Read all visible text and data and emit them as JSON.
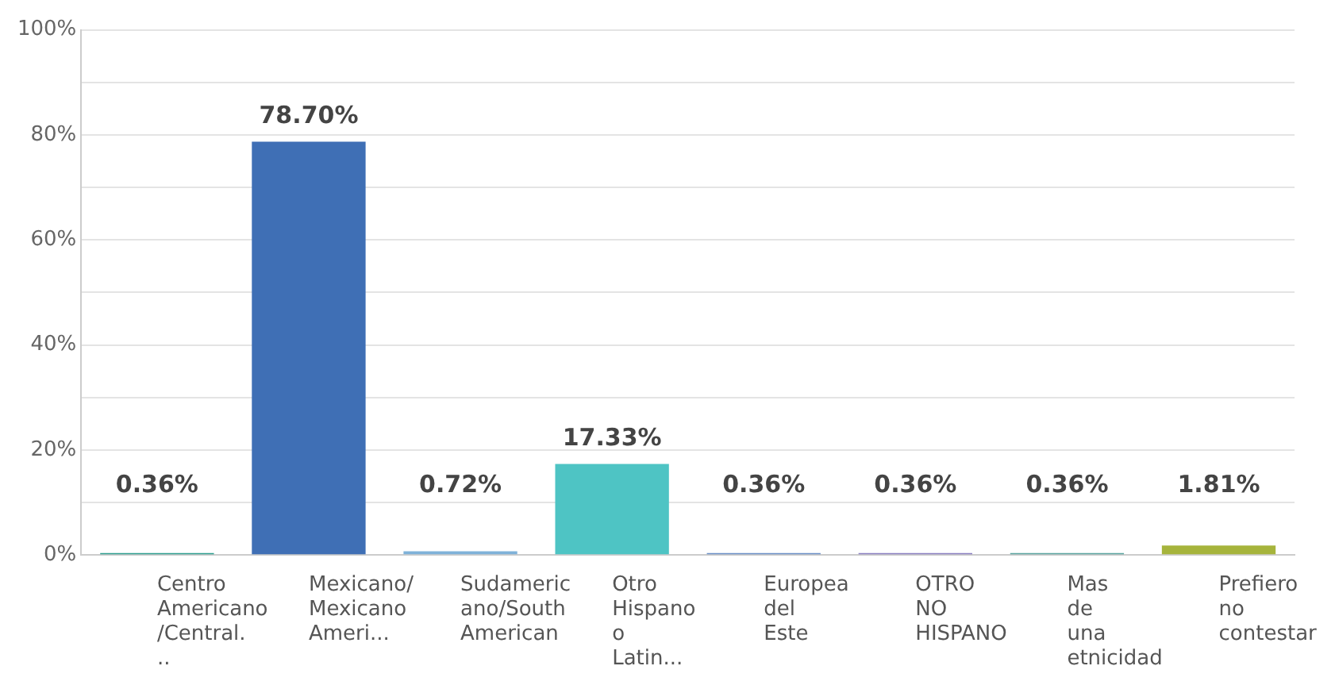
{
  "chart_data": {
    "type": "bar",
    "categories": [
      "Centro Americano/Central...",
      "Mexicano/Mexicano Ameri...",
      "Sudamericano/South American",
      "Otro Hispano o Latin...",
      "Europea del Este",
      "OTRO NO HISPANO",
      "Mas de una etnicidad",
      "Prefiero no contestar"
    ],
    "values": [
      0.36,
      78.7,
      0.72,
      17.33,
      0.36,
      0.36,
      0.36,
      1.81
    ],
    "colors": [
      "#2e9e8f",
      "#3f6fb5",
      "#7fb2d9",
      "#4ec4c4",
      "#6b8fc7",
      "#8a7fc2",
      "#5aa5a0",
      "#a6b43c"
    ],
    "value_labels": [
      "0.36%",
      "78.70%",
      "0.72%",
      "17.33%",
      "0.36%",
      "0.36%",
      "0.36%",
      "1.81%"
    ],
    "ylim": [
      0,
      100
    ],
    "yticks": [
      {
        "value": 0,
        "label": "0%"
      },
      {
        "value": 10,
        "label": null
      },
      {
        "value": 20,
        "label": "20%"
      },
      {
        "value": 30,
        "label": null
      },
      {
        "value": 40,
        "label": "40%"
      },
      {
        "value": 50,
        "label": null
      },
      {
        "value": 60,
        "label": "60%"
      },
      {
        "value": 70,
        "label": null
      },
      {
        "value": 80,
        "label": "80%"
      },
      {
        "value": 90,
        "label": null
      },
      {
        "value": 100,
        "label": "100%"
      }
    ],
    "grid": "y",
    "legend": false
  }
}
